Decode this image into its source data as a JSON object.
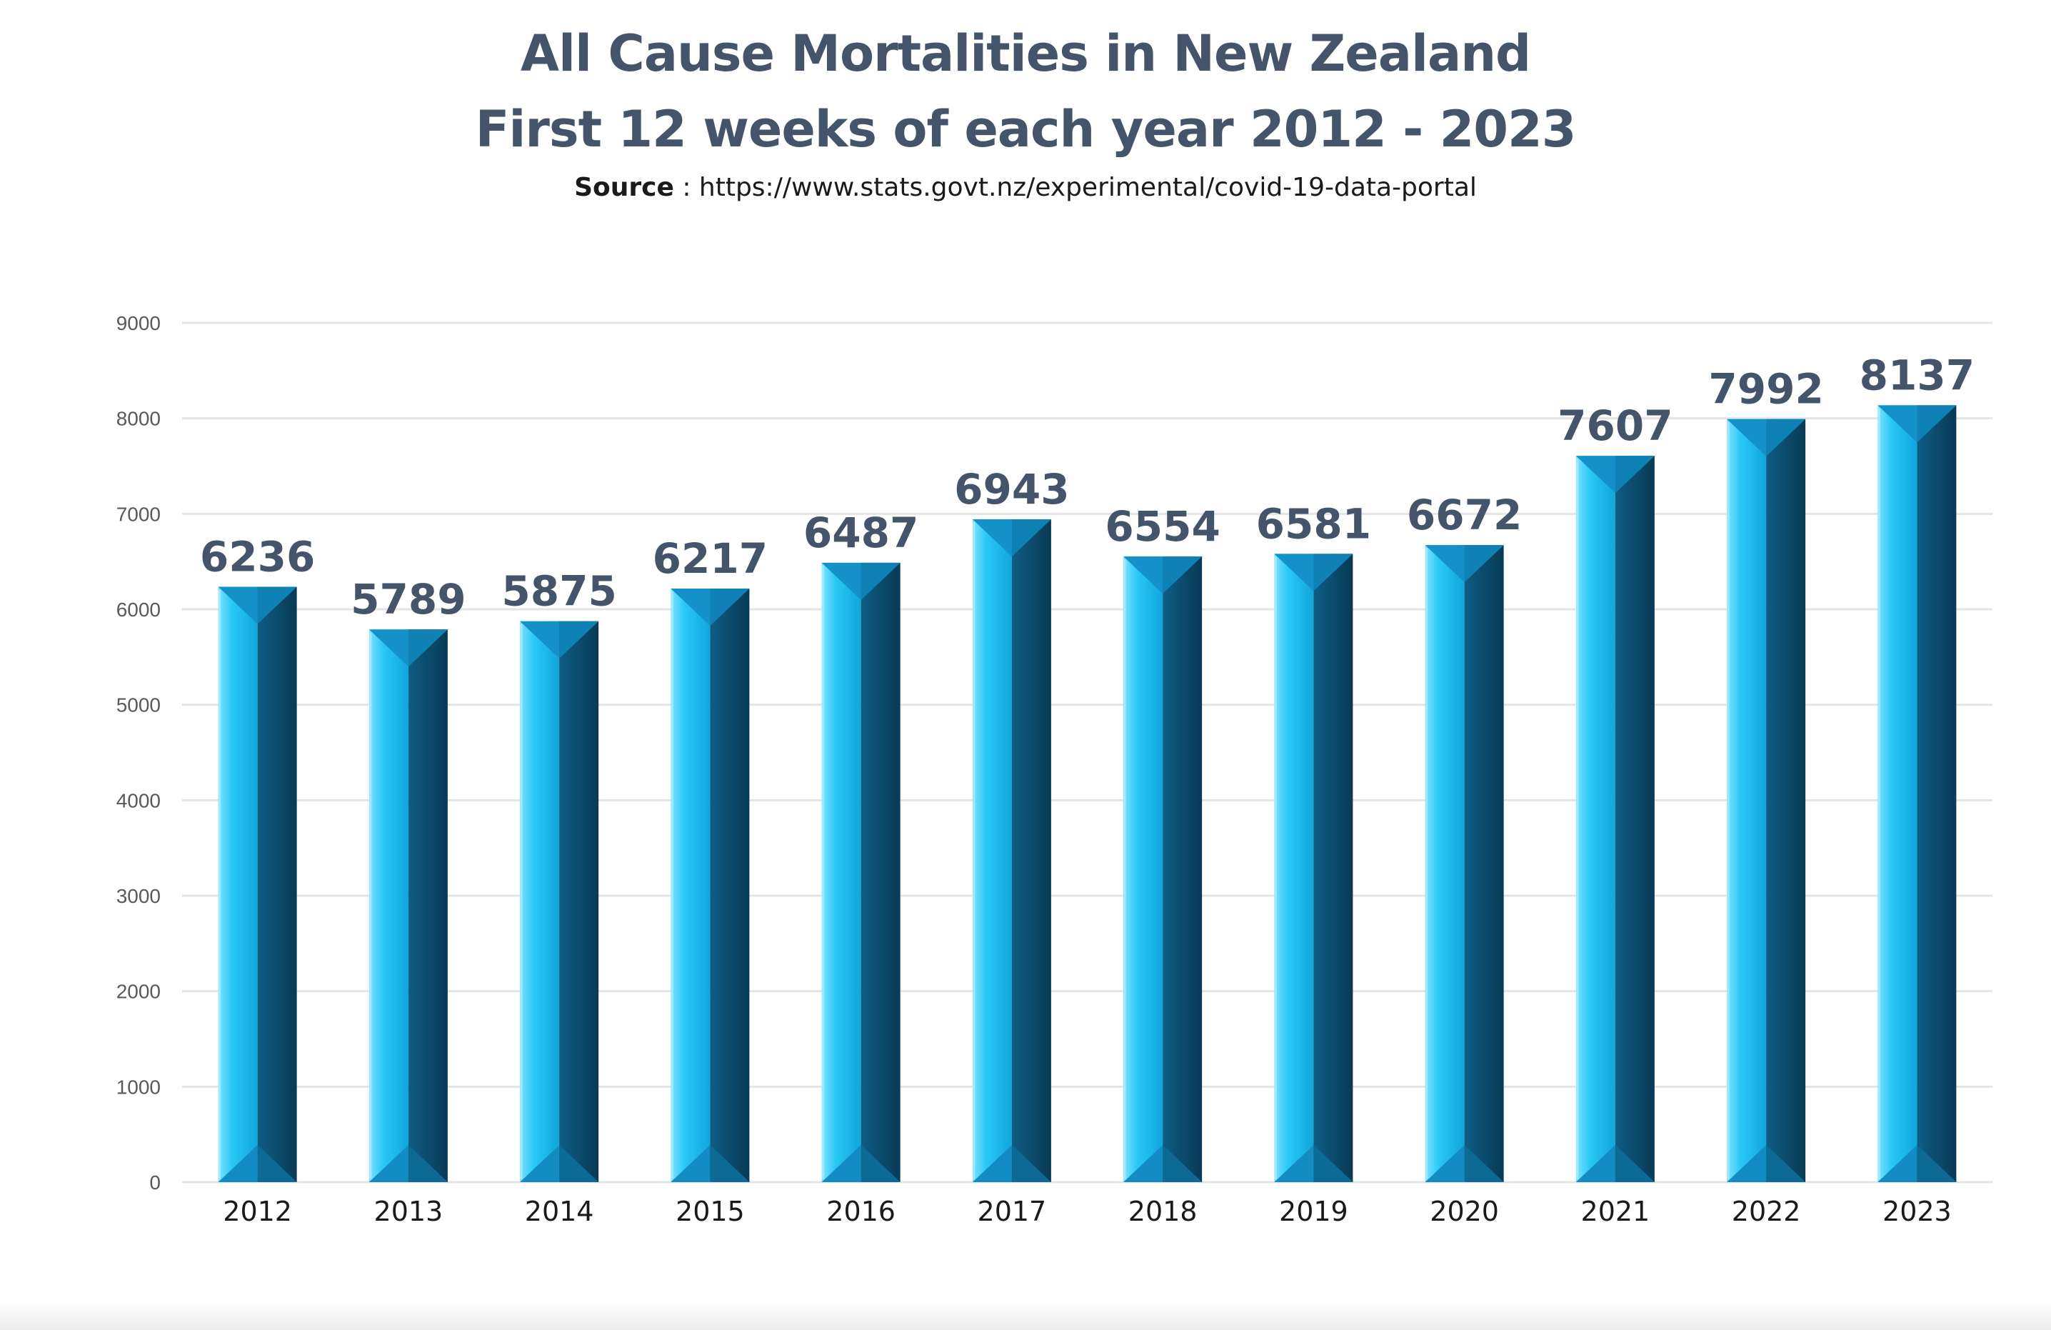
{
  "title": {
    "line1": "All Cause Mortalities in New Zealand",
    "line2": "First 12 weeks of each year 2012 - 2023"
  },
  "source": {
    "label": "Source",
    "separator": " : ",
    "url": "https://www.stats.govt.nz/experimental/covid-19-data-portal"
  },
  "colors": {
    "bar_light": "#29c8f5",
    "bar_dark": "#0b4d6e",
    "bar_top": "#1391c8",
    "value_label": "#44546a",
    "gridline": "#e4e4e4",
    "axis_text": "#595959"
  },
  "chart_data": {
    "type": "bar",
    "title": "All Cause Mortalities in New Zealand First 12 weeks of each year 2012 - 2023",
    "categories": [
      "2012",
      "2013",
      "2014",
      "2015",
      "2016",
      "2017",
      "2018",
      "2019",
      "2020",
      "2021",
      "2022",
      "2023"
    ],
    "values": [
      6236,
      5789,
      5875,
      6217,
      6487,
      6943,
      6554,
      6581,
      6672,
      7607,
      7992,
      8137
    ],
    "y_ticks": [
      0,
      1000,
      2000,
      3000,
      4000,
      5000,
      6000,
      7000,
      8000,
      9000
    ],
    "ylim": [
      0,
      9000
    ],
    "xlabel": "",
    "ylabel": "",
    "grid": true,
    "data_labels": true,
    "legend": "none"
  }
}
